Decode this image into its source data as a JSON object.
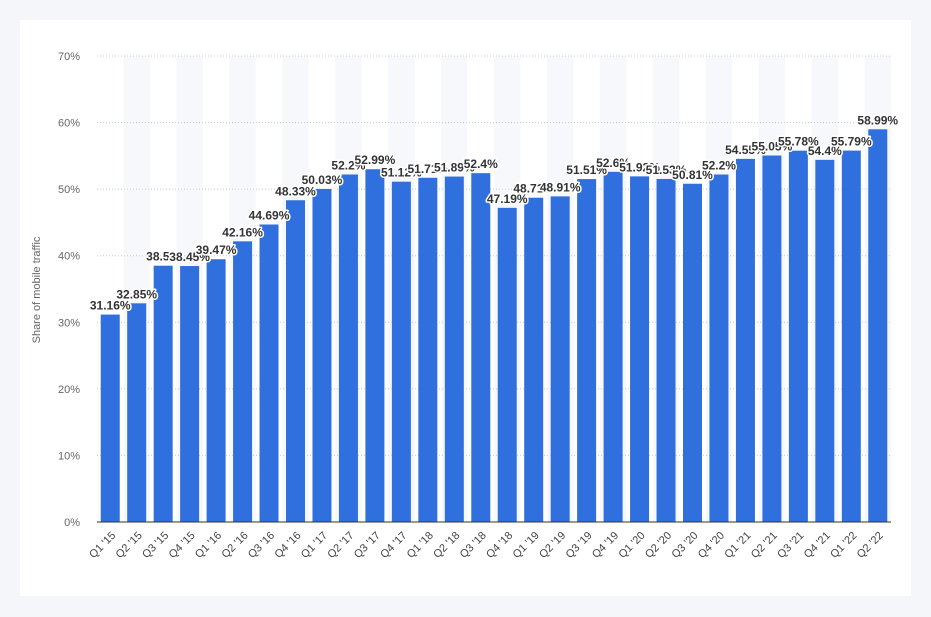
{
  "chart_data": {
    "type": "bar",
    "title": "",
    "xlabel": "",
    "ylabel": "Share of mobile traffic",
    "ylim": [
      0,
      70
    ],
    "y_tick_labels": [
      "0%",
      "10%",
      "20%",
      "30%",
      "40%",
      "50%",
      "60%",
      "70%"
    ],
    "grid": true,
    "bar_color": "#2f6fde",
    "categories": [
      "Q1 '15",
      "Q2 '15",
      "Q3 '15",
      "Q4 '15",
      "Q1 '16",
      "Q2 '16",
      "Q3 '16",
      "Q4 '16",
      "Q1 '17",
      "Q2 '17",
      "Q3 '17",
      "Q4 '17",
      "Q1 '18",
      "Q2 '18",
      "Q3 '18",
      "Q4 '18",
      "Q1 '19",
      "Q2 '19",
      "Q3 '19",
      "Q4 '19",
      "Q1 '20",
      "Q2 '20",
      "Q3 '20",
      "Q4 '20",
      "Q1 '21",
      "Q2 '21",
      "Q3 '21",
      "Q4 '21",
      "Q1 '22",
      "Q2 '22"
    ],
    "values": [
      31.16,
      32.85,
      38.5,
      38.45,
      39.47,
      42.16,
      44.69,
      48.33,
      50.03,
      52.2,
      52.99,
      51.12,
      51.71,
      51.89,
      52.4,
      47.19,
      48.71,
      48.91,
      51.51,
      52.6,
      51.92,
      51.53,
      50.81,
      52.2,
      54.55,
      55.05,
      55.78,
      54.4,
      55.79,
      58.99
    ],
    "labels": [
      "31.16%",
      "32.85%",
      "38.5%",
      "38.45%",
      "39.47%",
      "42.16%",
      "44.69%",
      "48.33%",
      "50.03%",
      "52.2%",
      "52.99%",
      "51.12%",
      "51.71%",
      "51.89%",
      "52.4%",
      "47.19%",
      "48.71%",
      "48.91%",
      "51.51%",
      "52.6%",
      "51.92%",
      "51.53%",
      "50.81%",
      "52.2%",
      "54.55%",
      "55.05%",
      "55.78%",
      "54.4%",
      "55.79%",
      "58.99%"
    ]
  }
}
